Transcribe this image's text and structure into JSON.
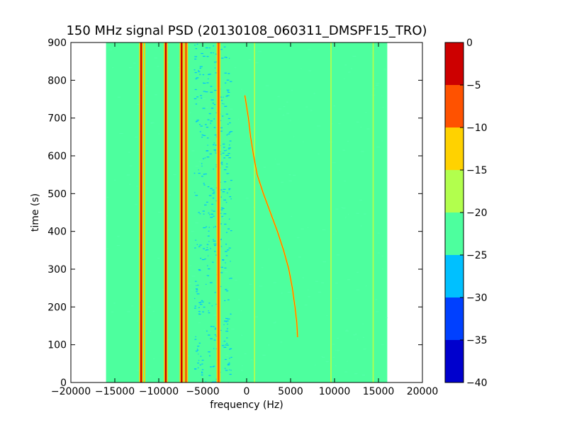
{
  "chart_data": {
    "type": "heatmap",
    "title": "150 MHz signal PSD (20130108_060311_DMSPF15_TRO)",
    "xlabel": "frequency (Hz)",
    "ylabel": "time (s)",
    "xlim": [
      -20000,
      20000
    ],
    "ylim": [
      0,
      900
    ],
    "x_ticks": [
      -20000,
      -15000,
      -10000,
      -5000,
      0,
      5000,
      10000,
      15000,
      20000
    ],
    "y_ticks": [
      0,
      100,
      200,
      300,
      400,
      500,
      600,
      700,
      800,
      900
    ],
    "x_tick_labels": [
      "−20000",
      "−15000",
      "−10000",
      "−5000",
      "0",
      "5000",
      "10000",
      "15000",
      "20000"
    ],
    "y_tick_labels": [
      "0",
      "100",
      "200",
      "300",
      "400",
      "500",
      "600",
      "700",
      "800",
      "900"
    ],
    "data_frequency_range": [
      -16000,
      16000
    ],
    "data_time_range": [
      0,
      900
    ],
    "background_level": -22.5,
    "colorbar": {
      "levels": [
        -40,
        -35,
        -30,
        -25,
        -20,
        -15,
        -10,
        -5,
        0
      ],
      "tick_labels": [
        "−40",
        "−35",
        "−30",
        "−25",
        "−20",
        "−15",
        "−10",
        "−5",
        "0"
      ],
      "colors": [
        "#0000cd",
        "#0040ff",
        "#00c0ff",
        "#4dff9e",
        "#b2ff4d",
        "#ffd200",
        "#ff5200",
        "#cd0000"
      ]
    },
    "strong_lines": [
      {
        "frequency": -12000,
        "level": -2
      },
      {
        "frequency": -11600,
        "level": -12
      },
      {
        "frequency": -9200,
        "level": -2
      },
      {
        "frequency": -7400,
        "level": -3
      },
      {
        "frequency": -6900,
        "level": -7
      },
      {
        "frequency": -3200,
        "level": -6
      },
      {
        "frequency": 900,
        "level": -17
      },
      {
        "frequency": 9600,
        "level": -17
      },
      {
        "frequency": 14400,
        "level": -17
      }
    ],
    "doppler_trace": {
      "level": -8,
      "points": [
        {
          "t": 760,
          "f": -200
        },
        {
          "t": 700,
          "f": 200
        },
        {
          "t": 650,
          "f": 450
        },
        {
          "t": 600,
          "f": 800
        },
        {
          "t": 550,
          "f": 1200
        },
        {
          "t": 500,
          "f": 1900
        },
        {
          "t": 450,
          "f": 2700
        },
        {
          "t": 400,
          "f": 3500
        },
        {
          "t": 350,
          "f": 4200
        },
        {
          "t": 300,
          "f": 4800
        },
        {
          "t": 250,
          "f": 5200
        },
        {
          "t": 200,
          "f": 5500
        },
        {
          "t": 160,
          "f": 5700
        },
        {
          "t": 120,
          "f": 5800
        }
      ]
    }
  }
}
